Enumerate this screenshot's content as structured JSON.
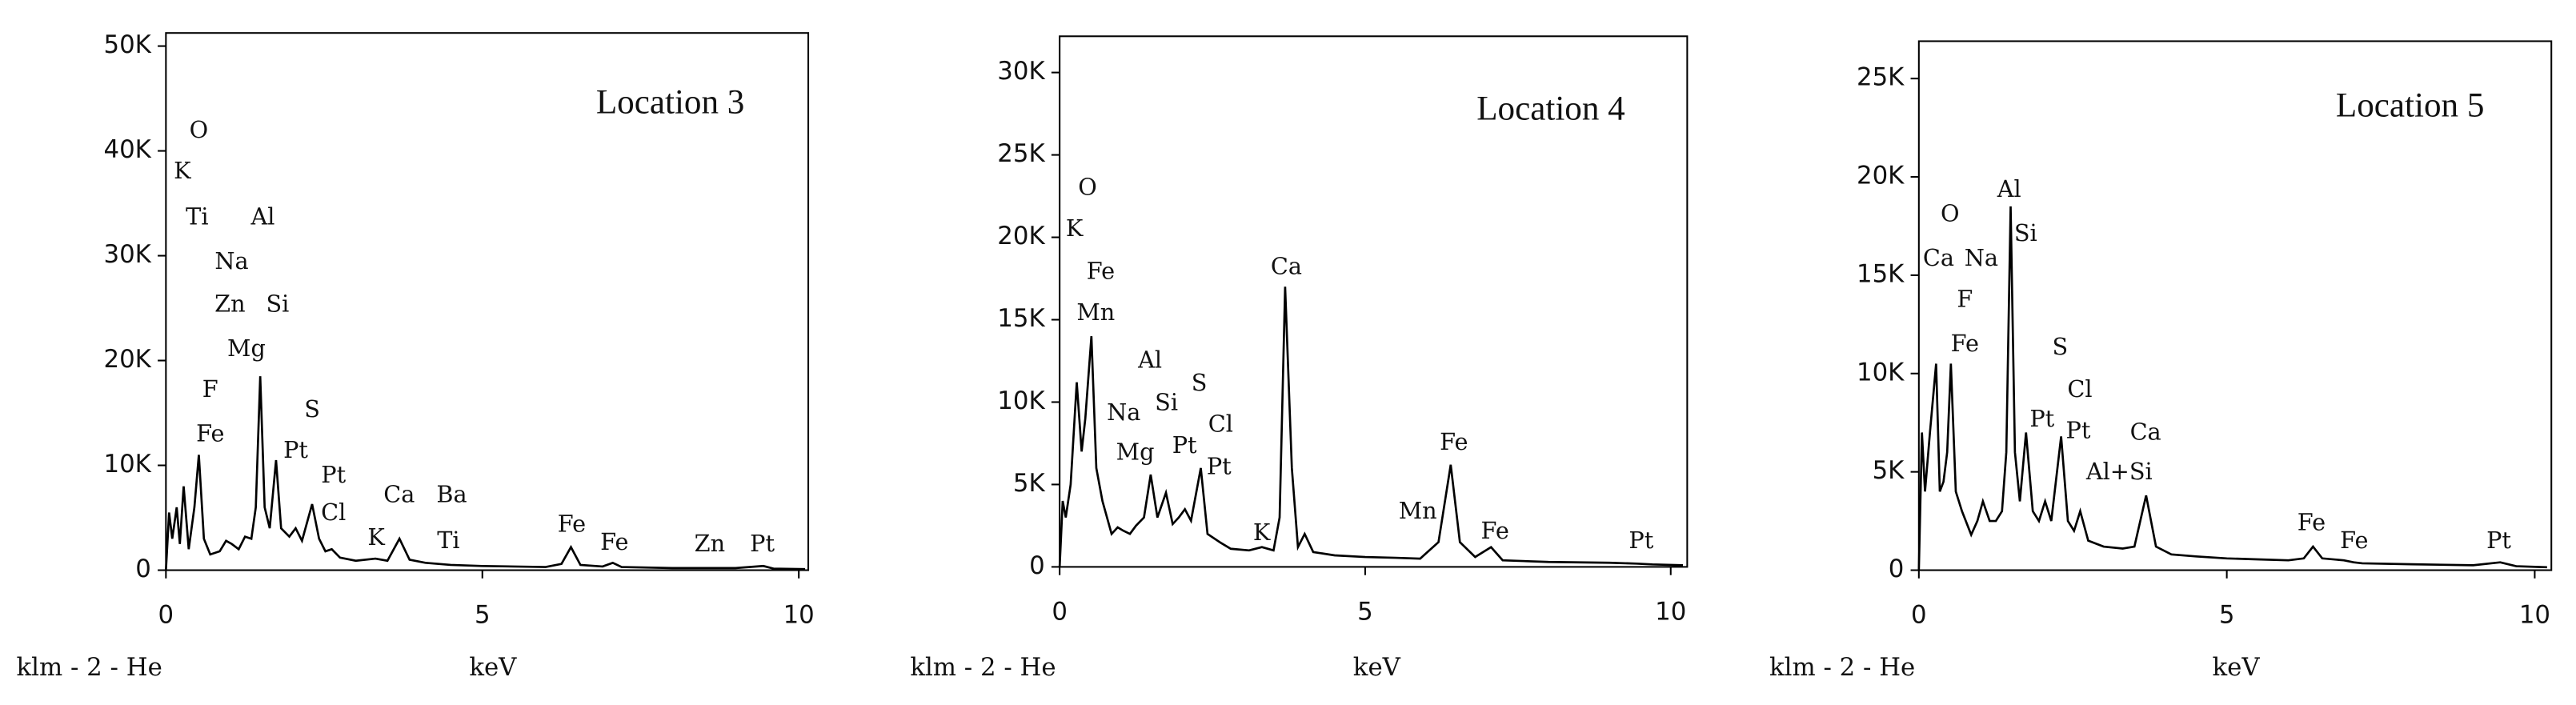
{
  "chart_data": [
    {
      "type": "line",
      "title": "Location 3",
      "x_label": "keV",
      "detector_label": "klm - 2 - He",
      "color": "#000000",
      "xlim": [
        0,
        10.15
      ],
      "ylim": [
        0,
        51250
      ],
      "xticks": [
        0,
        5,
        10
      ],
      "yticks": [
        0,
        {
          "value": 10000,
          "label": "10K"
        },
        {
          "value": 20000,
          "label": "20K"
        },
        {
          "value": 30000,
          "label": "30K"
        },
        {
          "value": 40000,
          "label": "40K"
        },
        {
          "value": 50000,
          "label": "50K"
        }
      ],
      "x": [
        0,
        0.05,
        0.1,
        0.17,
        0.22,
        0.28,
        0.36,
        0.45,
        0.52,
        0.6,
        0.7,
        0.85,
        0.95,
        1.04,
        1.15,
        1.25,
        1.35,
        1.42,
        1.49,
        1.56,
        1.64,
        1.74,
        1.82,
        1.95,
        2.05,
        2.15,
        2.31,
        2.42,
        2.52,
        2.62,
        2.75,
        3.0,
        3.31,
        3.5,
        3.69,
        3.85,
        4.1,
        4.5,
        5.0,
        5.5,
        6.0,
        6.25,
        6.4,
        6.55,
        6.9,
        7.06,
        7.2,
        8.0,
        8.6,
        9.0,
        9.44,
        9.6,
        10.1
      ],
      "values": [
        0,
        5500,
        3000,
        6000,
        2500,
        8000,
        2000,
        6000,
        11000,
        3000,
        1500,
        1800,
        2800,
        2500,
        2000,
        3200,
        3000,
        6000,
        18500,
        6000,
        4000,
        10500,
        4000,
        3200,
        4000,
        2800,
        6300,
        3000,
        1800,
        2000,
        1200,
        900,
        1100,
        900,
        3000,
        1000,
        700,
        500,
        400,
        350,
        300,
        600,
        2200,
        500,
        350,
        700,
        300,
        200,
        200,
        200,
        400,
        150,
        100
      ],
      "annotations": [
        "O",
        "K",
        "Ti",
        "Al",
        "Na",
        "Zn",
        "Si",
        "Mg",
        "F",
        "S",
        "Fe",
        "Pt",
        "Pt",
        "Cl",
        "Ca",
        "Ba",
        "K",
        "Ti",
        "Fe",
        "Fe",
        "Zn",
        "Pt"
      ]
    },
    {
      "type": "line",
      "title": "Location 4",
      "x_label": "keV",
      "detector_label": "klm - 2 - He",
      "color": "#000000",
      "xlim": [
        0,
        10.27
      ],
      "ylim": [
        0,
        32200
      ],
      "xticks": [
        0,
        5,
        10
      ],
      "yticks": [
        0,
        {
          "value": 5000,
          "label": "5K"
        },
        {
          "value": 10000,
          "label": "10K"
        },
        {
          "value": 15000,
          "label": "15K"
        },
        {
          "value": 20000,
          "label": "20K"
        },
        {
          "value": 25000,
          "label": "25K"
        },
        {
          "value": 30000,
          "label": "30K"
        }
      ],
      "x": [
        0,
        0.05,
        0.1,
        0.18,
        0.28,
        0.36,
        0.42,
        0.52,
        0.6,
        0.7,
        0.85,
        0.95,
        1.04,
        1.15,
        1.25,
        1.38,
        1.49,
        1.6,
        1.74,
        1.85,
        1.95,
        2.05,
        2.15,
        2.31,
        2.42,
        2.62,
        2.8,
        3.1,
        3.31,
        3.5,
        3.6,
        3.69,
        3.8,
        3.9,
        4.01,
        4.15,
        4.5,
        5.0,
        5.5,
        5.9,
        6.2,
        6.4,
        6.55,
        6.8,
        7.06,
        7.25,
        8.0,
        9.0,
        9.44,
        9.7,
        10.2
      ],
      "values": [
        0,
        4000,
        3000,
        5000,
        11200,
        7000,
        9000,
        14000,
        6000,
        4000,
        2000,
        2400,
        2200,
        2000,
        2500,
        3000,
        5600,
        3000,
        4500,
        2600,
        3000,
        3500,
        2800,
        6000,
        2000,
        1500,
        1100,
        1000,
        1200,
        1000,
        3000,
        17000,
        6000,
        1200,
        2000,
        900,
        700,
        600,
        550,
        500,
        1500,
        6200,
        1500,
        600,
        1200,
        400,
        300,
        250,
        200,
        150,
        100
      ],
      "annotations": [
        "O",
        "K",
        "Fe",
        "Mn",
        "Al",
        "Si",
        "S",
        "Na",
        "Cl",
        "Mg",
        "Pt",
        "Pt",
        "Ca",
        "K",
        "Mn",
        "Fe",
        "Fe",
        "Pt"
      ]
    },
    {
      "type": "line",
      "title": "Location 5",
      "x_label": "keV",
      "detector_label": "klm - 2 - He",
      "color": "#000000",
      "xlim": [
        0,
        10.27
      ],
      "ylim": [
        0,
        26900
      ],
      "xticks": [
        0,
        5,
        10
      ],
      "yticks": [
        0,
        {
          "value": 5000,
          "label": "5K"
        },
        {
          "value": 10000,
          "label": "10K"
        },
        {
          "value": 15000,
          "label": "15K"
        },
        {
          "value": 20000,
          "label": "20K"
        },
        {
          "value": 25000,
          "label": "25K"
        }
      ],
      "x": [
        0,
        0.05,
        0.1,
        0.18,
        0.28,
        0.34,
        0.4,
        0.46,
        0.52,
        0.6,
        0.7,
        0.85,
        0.95,
        1.04,
        1.15,
        1.25,
        1.35,
        1.42,
        1.49,
        1.56,
        1.64,
        1.74,
        1.85,
        1.95,
        2.05,
        2.15,
        2.31,
        2.42,
        2.52,
        2.62,
        2.75,
        3.0,
        3.31,
        3.5,
        3.69,
        3.85,
        4.1,
        4.5,
        5.0,
        5.5,
        6.0,
        6.25,
        6.4,
        6.55,
        6.9,
        7.06,
        7.2,
        8.0,
        9.0,
        9.44,
        9.7,
        10.2
      ],
      "values": [
        0,
        7000,
        4000,
        7000,
        10500,
        4000,
        4500,
        6000,
        10500,
        4000,
        3000,
        1800,
        2500,
        3500,
        2500,
        2500,
        3000,
        6000,
        18500,
        6000,
        3500,
        7000,
        3000,
        2500,
        3500,
        2500,
        6800,
        2500,
        2000,
        3000,
        1500,
        1200,
        1100,
        1200,
        3800,
        1200,
        800,
        700,
        600,
        550,
        500,
        600,
        1200,
        600,
        500,
        400,
        350,
        300,
        250,
        400,
        200,
        150
      ],
      "annotations": [
        "Al",
        "Si",
        "O",
        "Ca",
        "Na",
        "F",
        "Fe",
        "S",
        "Cl",
        "Pt",
        "Pt",
        "Ca",
        "Al+Si",
        "Fe",
        "Fe",
        "Pt"
      ]
    }
  ]
}
